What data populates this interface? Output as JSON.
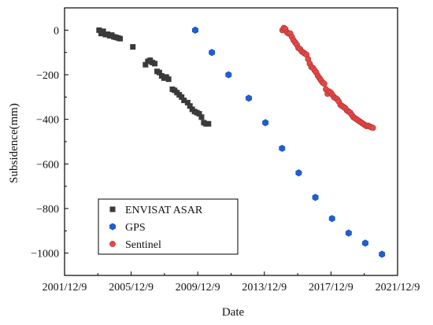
{
  "chart_data": {
    "type": "scatter",
    "title": "",
    "xlabel": "Date",
    "ylabel": "Subsidence(mm)",
    "x_ticks": [
      "2001/12/9",
      "2005/12/9",
      "2009/12/9",
      "2013/12/9",
      "2017/12/9",
      "2021/12/9"
    ],
    "y_ticks": [
      0,
      -200,
      -400,
      -600,
      -800,
      -1000
    ],
    "xlim": [
      "2001-12-09",
      "2021-12-09"
    ],
    "ylim": [
      -1100,
      100
    ],
    "grid": false,
    "legend_position": "bottom-left",
    "series": [
      {
        "name": "ENVISAT ASAR",
        "marker": "square",
        "color": "#3a3a3a",
        "points": [
          [
            "2004-01-05",
            0
          ],
          [
            "2004-02-20",
            -15
          ],
          [
            "2004-04-05",
            -5
          ],
          [
            "2004-05-25",
            -20
          ],
          [
            "2004-07-10",
            -18
          ],
          [
            "2004-08-25",
            -25
          ],
          [
            "2004-10-10",
            -22
          ],
          [
            "2004-11-25",
            -30
          ],
          [
            "2005-01-10",
            -32
          ],
          [
            "2005-02-25",
            -35
          ],
          [
            "2005-04-10",
            -38
          ],
          [
            "2006-01-15",
            -75
          ],
          [
            "2006-10-20",
            -155
          ],
          [
            "2006-12-10",
            -140
          ],
          [
            "2007-01-30",
            -135
          ],
          [
            "2007-03-20",
            -145
          ],
          [
            "2007-05-10",
            -150
          ],
          [
            "2007-07-01",
            -185
          ],
          [
            "2007-08-20",
            -190
          ],
          [
            "2007-10-10",
            -205
          ],
          [
            "2007-11-30",
            -215
          ],
          [
            "2008-01-20",
            -210
          ],
          [
            "2008-03-10",
            -220
          ],
          [
            "2008-06-01",
            -265
          ],
          [
            "2008-07-20",
            -270
          ],
          [
            "2008-09-10",
            -280
          ],
          [
            "2008-10-30",
            -290
          ],
          [
            "2008-12-20",
            -300
          ],
          [
            "2009-02-10",
            -315
          ],
          [
            "2009-05-01",
            -325
          ],
          [
            "2009-06-20",
            -340
          ],
          [
            "2009-08-10",
            -355
          ],
          [
            "2009-09-30",
            -365
          ],
          [
            "2009-11-20",
            -370
          ],
          [
            "2010-01-10",
            -375
          ],
          [
            "2010-03-01",
            -390
          ],
          [
            "2010-04-20",
            -415
          ],
          [
            "2010-06-10",
            -420
          ],
          [
            "2010-08-01",
            -420
          ]
        ]
      },
      {
        "name": "GPS",
        "marker": "hexagon",
        "color": "#1f5fd6",
        "points": [
          [
            "2009-10-15",
            0
          ],
          [
            "2010-10-15",
            -100
          ],
          [
            "2011-10-15",
            -200
          ],
          [
            "2013-01-01",
            -305
          ],
          [
            "2014-01-01",
            -415
          ],
          [
            "2015-01-01",
            -530
          ],
          [
            "2016-01-01",
            -640
          ],
          [
            "2017-01-01",
            -750
          ],
          [
            "2018-01-01",
            -845
          ],
          [
            "2019-01-01",
            -910
          ],
          [
            "2020-01-01",
            -955
          ],
          [
            "2021-01-01",
            -1005
          ]
        ]
      },
      {
        "name": "Sentinel",
        "marker": "circle",
        "color": "#e24a4a",
        "points": [
          [
            "2015-01-10",
            0
          ],
          [
            "2015-02-10",
            10
          ],
          [
            "2015-03-15",
            5
          ],
          [
            "2015-04-20",
            -10
          ],
          [
            "2015-05-25",
            -15
          ],
          [
            "2015-07-01",
            -15
          ],
          [
            "2015-08-05",
            -30
          ],
          [
            "2015-09-10",
            -45
          ],
          [
            "2015-10-15",
            -55
          ],
          [
            "2015-11-20",
            -65
          ],
          [
            "2015-12-25",
            -80
          ],
          [
            "2016-02-01",
            -85
          ],
          [
            "2016-03-05",
            -95
          ],
          [
            "2016-04-10",
            -100
          ],
          [
            "2016-05-15",
            -105
          ],
          [
            "2016-06-20",
            -110
          ],
          [
            "2016-07-25",
            -130
          ],
          [
            "2016-08-30",
            -150
          ],
          [
            "2016-10-05",
            -165
          ],
          [
            "2016-11-10",
            -170
          ],
          [
            "2016-12-15",
            -180
          ],
          [
            "2017-01-20",
            -190
          ],
          [
            "2017-02-25",
            -205
          ],
          [
            "2017-04-01",
            -215
          ],
          [
            "2017-05-05",
            -225
          ],
          [
            "2017-06-10",
            -235
          ],
          [
            "2017-07-15",
            -240
          ],
          [
            "2017-08-20",
            -265
          ],
          [
            "2017-09-25",
            -285
          ],
          [
            "2017-11-01",
            -275
          ],
          [
            "2017-12-05",
            -280
          ],
          [
            "2018-01-10",
            -290
          ],
          [
            "2018-02-15",
            -300
          ],
          [
            "2018-03-20",
            -305
          ],
          [
            "2018-04-25",
            -310
          ],
          [
            "2018-05-30",
            -320
          ],
          [
            "2018-07-05",
            -335
          ],
          [
            "2018-08-10",
            -340
          ],
          [
            "2018-09-15",
            -345
          ],
          [
            "2018-10-20",
            -350
          ],
          [
            "2018-11-25",
            -360
          ],
          [
            "2018-12-30",
            -365
          ],
          [
            "2019-02-05",
            -370
          ],
          [
            "2019-03-10",
            -380
          ],
          [
            "2019-04-15",
            -390
          ],
          [
            "2019-05-20",
            -395
          ],
          [
            "2019-06-25",
            -400
          ],
          [
            "2019-08-01",
            -405
          ],
          [
            "2019-09-05",
            -410
          ],
          [
            "2019-10-10",
            -415
          ],
          [
            "2019-11-15",
            -420
          ],
          [
            "2019-12-20",
            -425
          ],
          [
            "2020-01-25",
            -430
          ],
          [
            "2020-03-01",
            -428
          ],
          [
            "2020-04-05",
            -432
          ],
          [
            "2020-05-10",
            -435
          ],
          [
            "2020-06-15",
            -438
          ]
        ]
      }
    ]
  }
}
